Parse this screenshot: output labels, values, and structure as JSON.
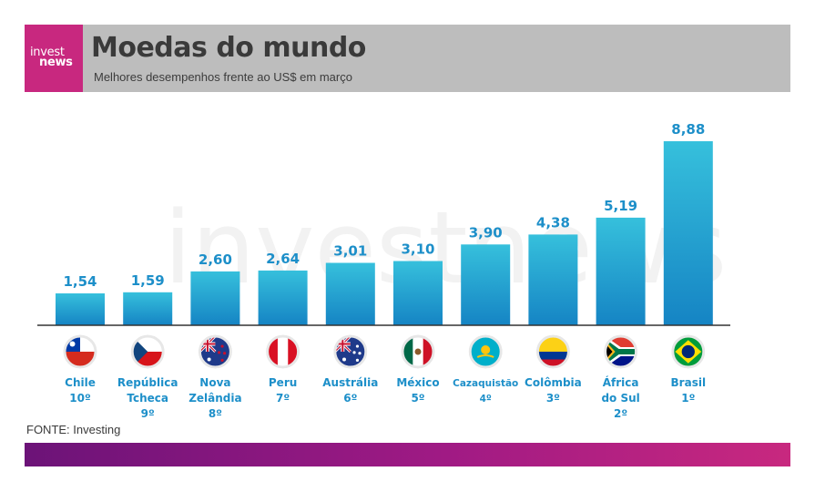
{
  "logo": {
    "line1": "invest",
    "line2": "news"
  },
  "header": {
    "title": "Moedas do mundo",
    "subtitle": "Melhores desempenhos frente ao US$ em março"
  },
  "watermark": "investnews",
  "source": "FONTE: Investing",
  "colors": {
    "bar_top": "#36c0dc",
    "bar_bottom": "#1584c4",
    "label": "#1d8fc9",
    "brand": "#c8287f",
    "header_bg": "#bdbdbd"
  },
  "chart_data": {
    "type": "bar",
    "title": "Moedas do mundo",
    "subtitle": "Melhores desempenhos frente ao US$ em março",
    "categories": [
      "Chile",
      "República Tcheca",
      "Nova Zelândia",
      "Peru",
      "Austrália",
      "México",
      "Cazaquistão",
      "Colômbia",
      "África do Sul",
      "Brasil"
    ],
    "values": [
      1.54,
      1.59,
      2.6,
      2.64,
      3.01,
      3.1,
      3.9,
      4.38,
      5.19,
      8.88
    ],
    "value_labels": [
      "1,54",
      "1,59",
      "2,60",
      "2,64",
      "3,01",
      "3,10",
      "3,90",
      "4,38",
      "5,19",
      "8,88"
    ],
    "category_lines": [
      [
        "Chile",
        "10º"
      ],
      [
        "República",
        "Tcheca",
        "9º"
      ],
      [
        "Nova",
        "Zelândia",
        "8º"
      ],
      [
        "Peru",
        "7º"
      ],
      [
        "Austrália",
        "6º"
      ],
      [
        "México",
        "5º"
      ],
      [
        "Cazaquistão",
        "4º"
      ],
      [
        "Colômbia",
        "3º"
      ],
      [
        "África",
        "do Sul",
        "2º"
      ],
      [
        "Brasil",
        "1º"
      ]
    ],
    "flags": [
      "chile-flag-icon",
      "czech-flag-icon",
      "new-zealand-flag-icon",
      "peru-flag-icon",
      "australia-flag-icon",
      "mexico-flag-icon",
      "kazakhstan-flag-icon",
      "colombia-flag-icon",
      "south-africa-flag-icon",
      "brazil-flag-icon"
    ],
    "ylim": [
      0,
      8.88
    ],
    "grid": false,
    "legend": "none"
  }
}
